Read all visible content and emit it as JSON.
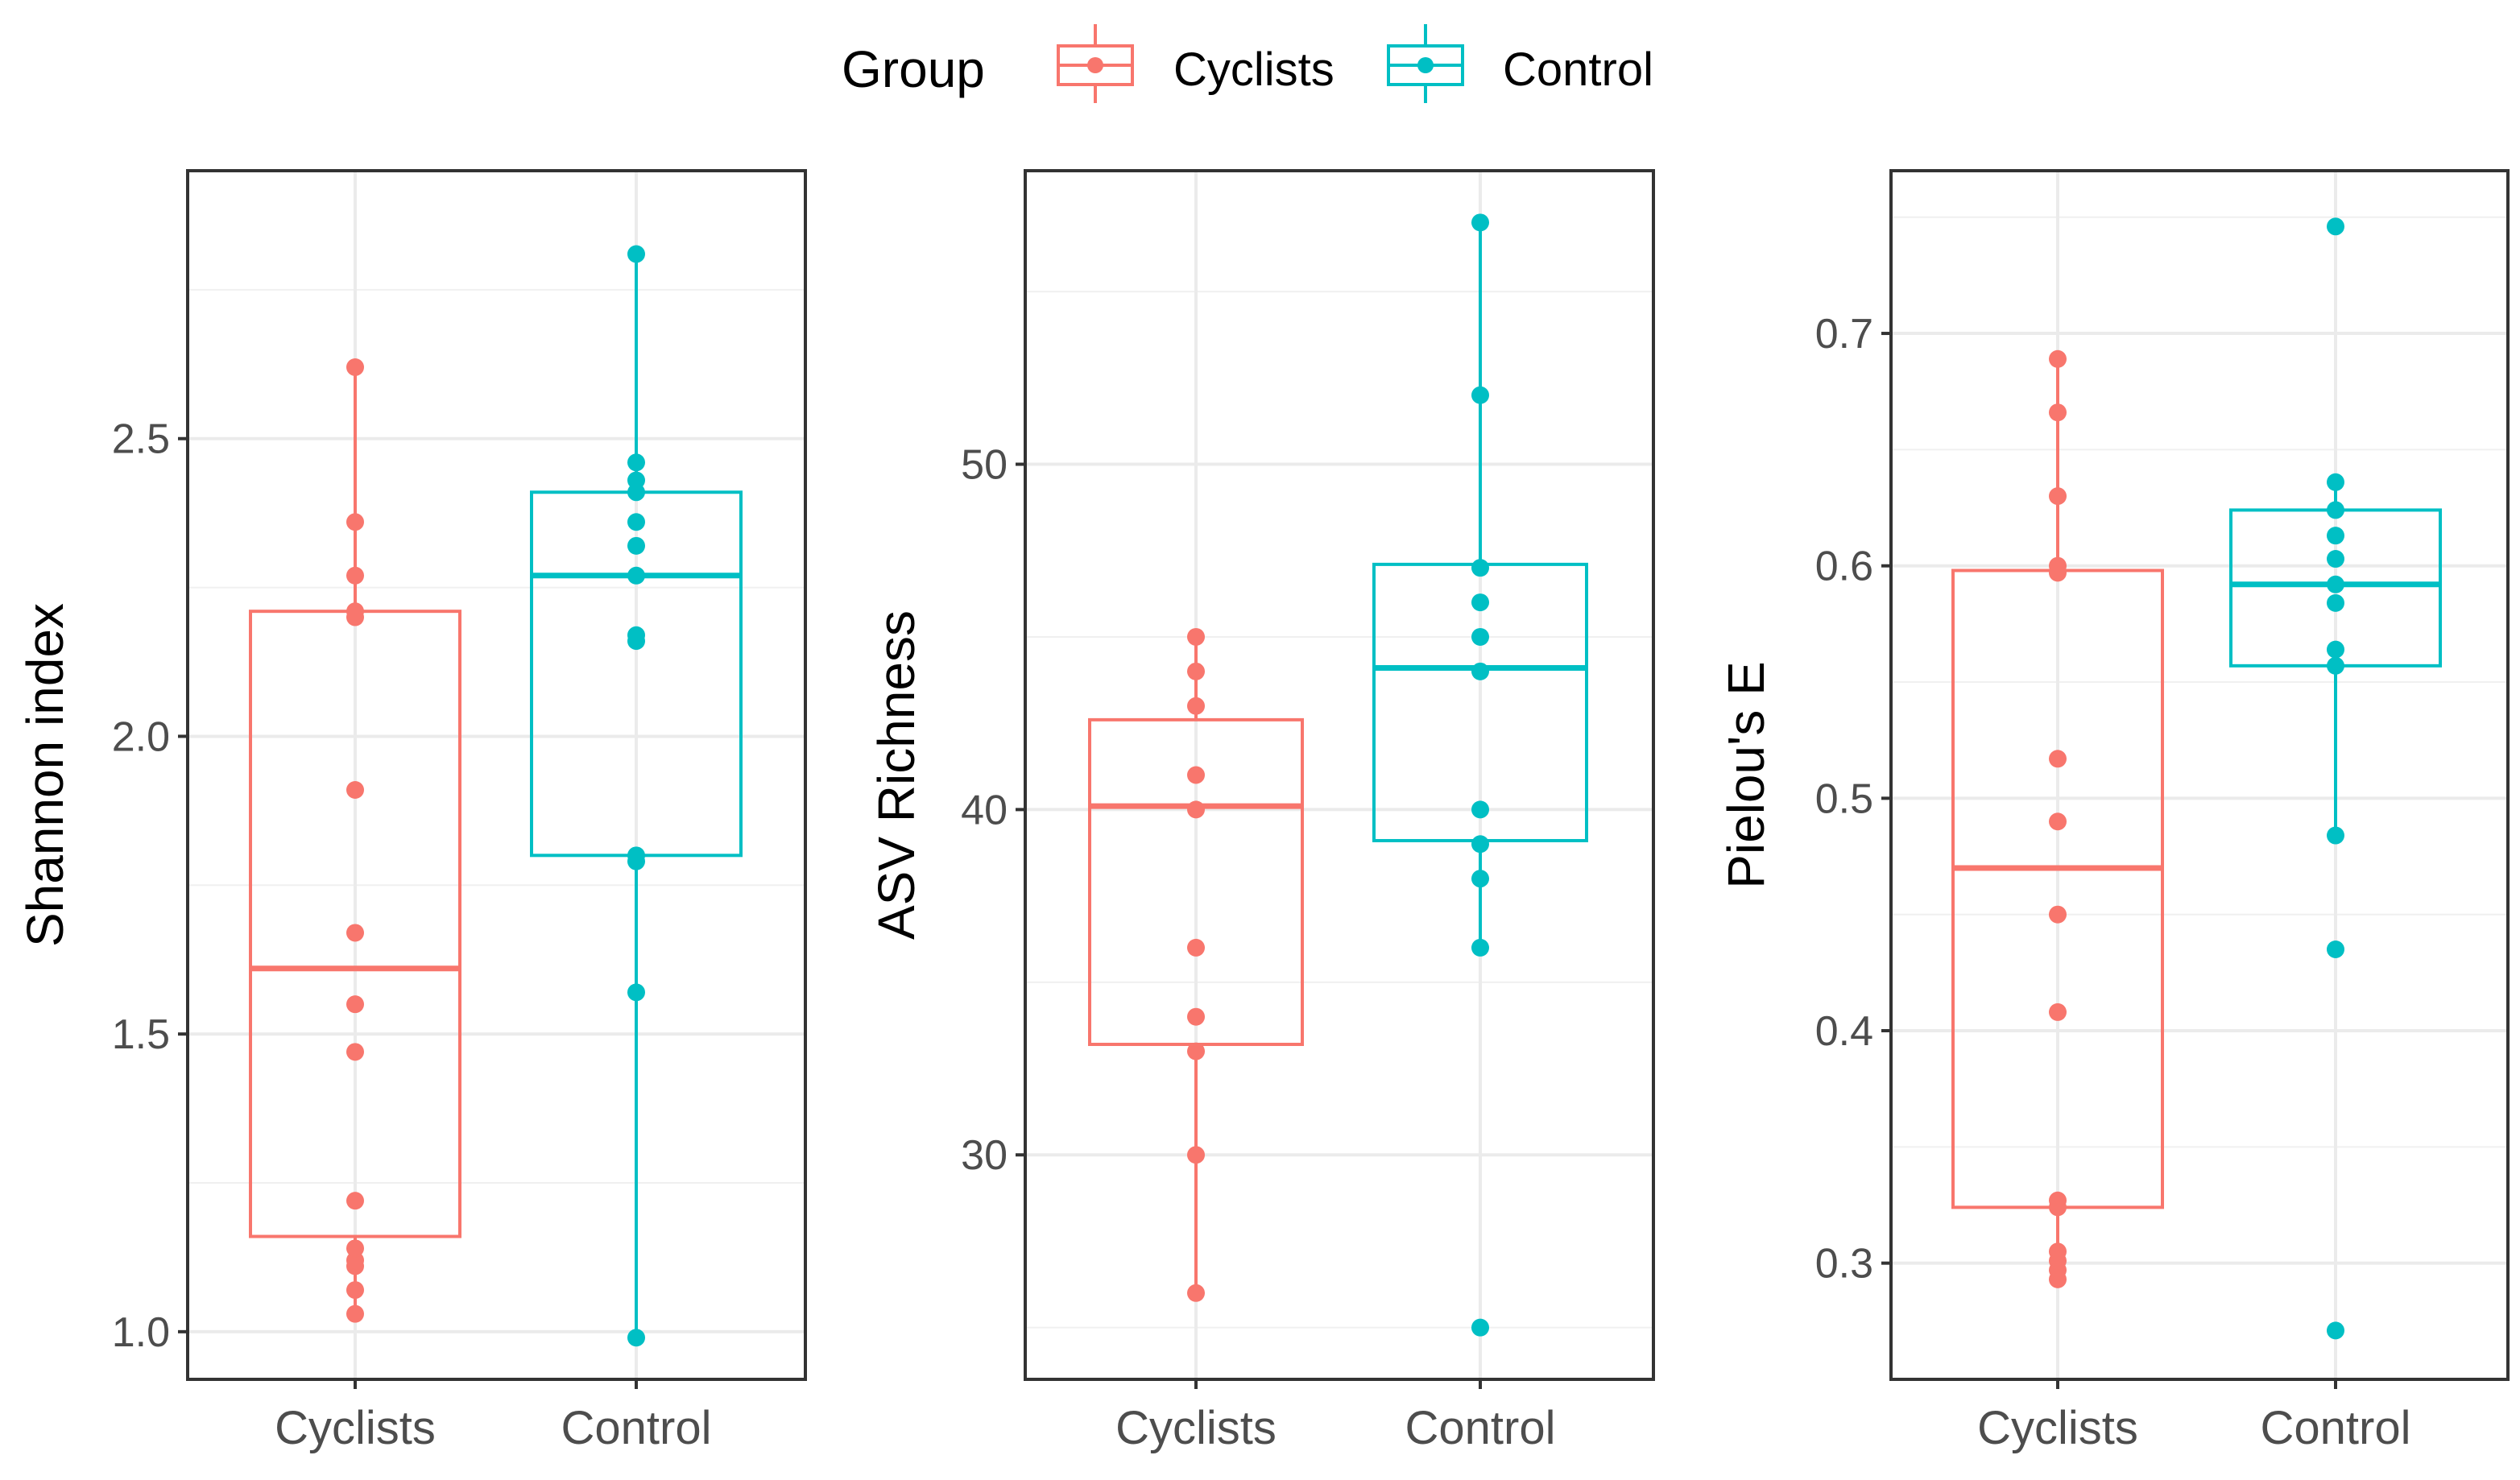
{
  "legend": {
    "title": "Group",
    "items": [
      {
        "label": "Cyclists",
        "color": "#F8766D"
      },
      {
        "label": "Control",
        "color": "#00BFC4"
      }
    ]
  },
  "chart_data": [
    {
      "type": "boxplot",
      "ylabel": "Shannon index",
      "ylim": [
        0.92,
        2.95
      ],
      "yticks": [
        1.0,
        1.5,
        2.0,
        2.5
      ],
      "ytick_labels": [
        "1.0",
        "1.5",
        "2.0",
        "2.5"
      ],
      "categories": [
        "Cyclists",
        "Control"
      ],
      "series": [
        {
          "name": "Cyclists",
          "color": "#F8766D",
          "whisker_low": 1.03,
          "q1": 1.16,
          "median": 1.61,
          "q3": 2.21,
          "whisker_high": 2.62,
          "points": [
            1.03,
            1.07,
            1.11,
            1.12,
            1.14,
            1.22,
            1.47,
            1.55,
            1.67,
            1.91,
            2.2,
            2.21,
            2.27,
            2.36,
            2.62
          ]
        },
        {
          "name": "Control",
          "color": "#00BFC4",
          "whisker_low": 0.99,
          "q1": 1.8,
          "median": 2.27,
          "q3": 2.41,
          "whisker_high": 2.81,
          "points": [
            0.99,
            1.57,
            1.79,
            1.8,
            2.16,
            2.17,
            2.27,
            2.32,
            2.36,
            2.41,
            2.43,
            2.46,
            2.81
          ]
        }
      ]
    },
    {
      "type": "boxplot",
      "ylabel": "ASV Richness",
      "ylim": [
        23.5,
        58.5
      ],
      "yticks": [
        30,
        40,
        50
      ],
      "ytick_labels": [
        "30",
        "40",
        "50"
      ],
      "categories": [
        "Cyclists",
        "Control"
      ],
      "series": [
        {
          "name": "Cyclists",
          "color": "#F8766D",
          "whisker_low": 26,
          "q1": 33.2,
          "median": 40.1,
          "q3": 42.6,
          "whisker_high": 45,
          "points": [
            26,
            30,
            33,
            34,
            36,
            40,
            41,
            43,
            44,
            45
          ]
        },
        {
          "name": "Control",
          "color": "#00BFC4",
          "whisker_low": 36,
          "q1": 39.1,
          "median": 44.1,
          "q3": 47.1,
          "whisker_high": 57,
          "points": [
            25,
            36,
            38,
            39,
            40,
            44,
            45,
            46,
            47,
            52,
            57
          ]
        }
      ]
    },
    {
      "type": "boxplot",
      "ylabel": "Pielou's E",
      "ylim": [
        0.25,
        0.77
      ],
      "yticks": [
        0.3,
        0.4,
        0.5,
        0.6,
        0.7
      ],
      "ytick_labels": [
        "0.3",
        "0.4",
        "0.5",
        "0.6",
        "0.7"
      ],
      "categories": [
        "Cyclists",
        "Control"
      ],
      "series": [
        {
          "name": "Cyclists",
          "color": "#F8766D",
          "whisker_low": 0.293,
          "q1": 0.324,
          "median": 0.47,
          "q3": 0.598,
          "whisker_high": 0.689,
          "points": [
            0.293,
            0.297,
            0.301,
            0.305,
            0.324,
            0.327,
            0.408,
            0.45,
            0.49,
            0.517,
            0.597,
            0.6,
            0.63,
            0.666,
            0.689
          ]
        },
        {
          "name": "Control",
          "color": "#00BFC4",
          "whisker_low": 0.484,
          "q1": 0.557,
          "median": 0.592,
          "q3": 0.624,
          "whisker_high": 0.636,
          "points": [
            0.271,
            0.435,
            0.484,
            0.557,
            0.564,
            0.584,
            0.592,
            0.603,
            0.613,
            0.624,
            0.636,
            0.746
          ]
        }
      ]
    }
  ]
}
